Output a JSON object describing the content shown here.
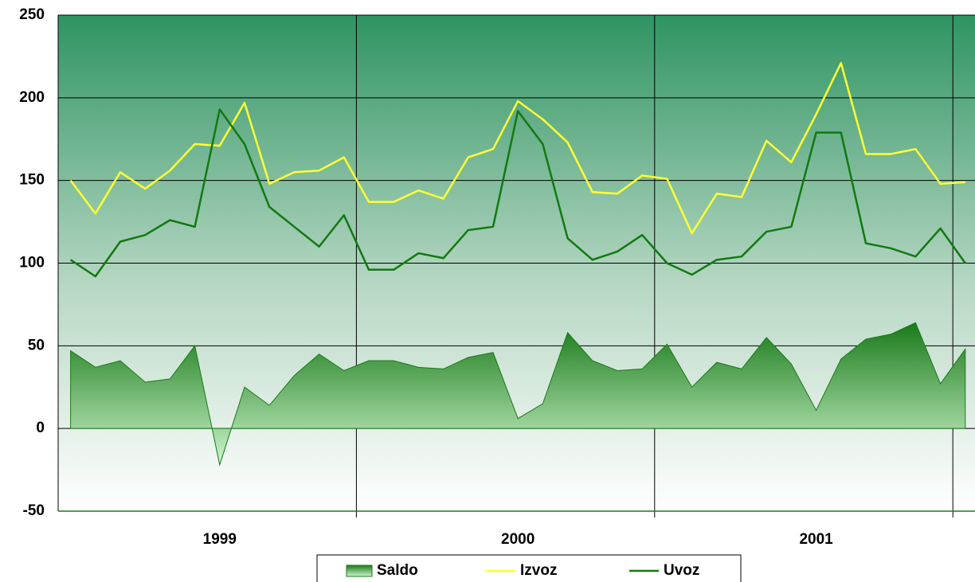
{
  "chart_data": {
    "type": "line",
    "categories": [
      null,
      null,
      null,
      null,
      null,
      null,
      "1999",
      null,
      null,
      null,
      null,
      null,
      null,
      null,
      null,
      null,
      null,
      null,
      "2000",
      null,
      null,
      null,
      null,
      null,
      null,
      null,
      null,
      null,
      null,
      null,
      "2001",
      null,
      null,
      null,
      null,
      null,
      null
    ],
    "series": [
      {
        "name": "Saldo",
        "type": "area",
        "color": "#1a7a1a",
        "values": [
          47,
          37,
          41,
          28,
          30,
          50,
          -22,
          25,
          14,
          32,
          45,
          35,
          41,
          41,
          37,
          36,
          43,
          46,
          6,
          15,
          58,
          41,
          35,
          36,
          51,
          25,
          40,
          36,
          55,
          39,
          11,
          42,
          54,
          57,
          64,
          27,
          48
        ]
      },
      {
        "name": "Izvoz",
        "type": "line",
        "color": "#ffff33",
        "values": [
          150,
          130,
          155,
          145,
          156,
          172,
          171,
          197,
          148,
          155,
          156,
          164,
          137,
          137,
          144,
          139,
          164,
          169,
          198,
          187,
          173,
          143,
          142,
          153,
          151,
          118,
          142,
          140,
          174,
          161,
          190,
          221,
          166,
          166,
          169,
          148,
          149
        ]
      },
      {
        "name": "Uvoz",
        "type": "line",
        "color": "#117a11",
        "values": [
          102,
          92,
          113,
          117,
          126,
          122,
          193,
          172,
          134,
          122,
          110,
          129,
          96,
          96,
          106,
          103,
          120,
          122,
          192,
          172,
          115,
          102,
          107,
          117,
          100,
          93,
          102,
          104,
          119,
          122,
          179,
          179,
          112,
          109,
          104,
          121,
          100
        ]
      }
    ],
    "ylim": [
      -50,
      250
    ],
    "yticks": [
      -50,
      0,
      50,
      100,
      150,
      200,
      250
    ],
    "grid": true,
    "legend": "bottom"
  }
}
